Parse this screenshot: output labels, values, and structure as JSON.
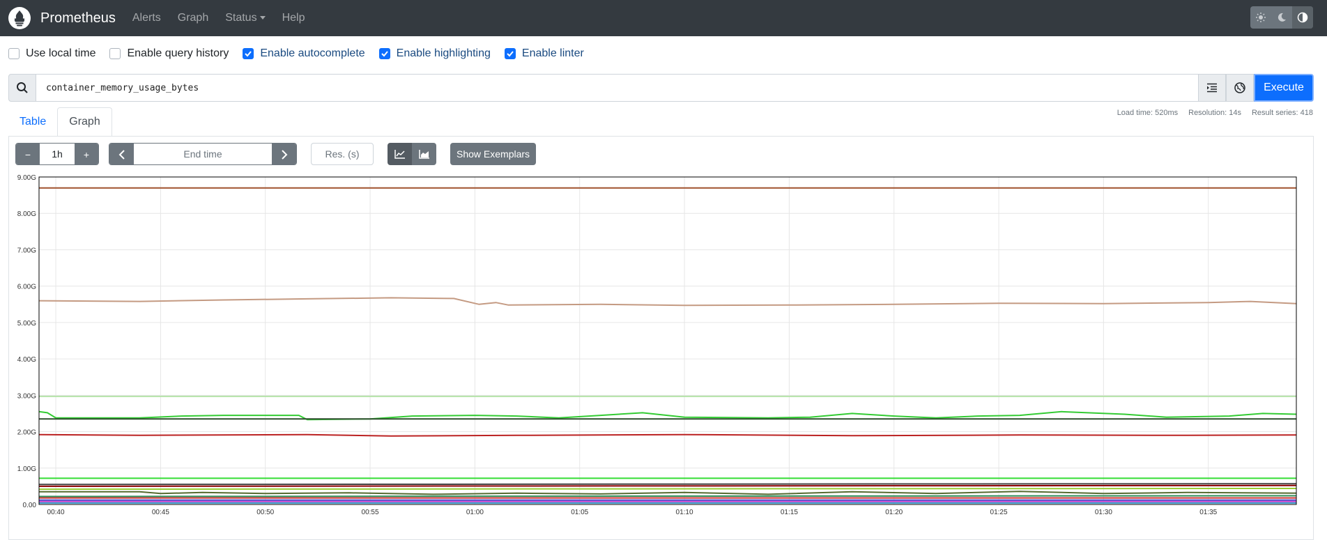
{
  "navbar": {
    "brand": "Prometheus",
    "items": [
      "Alerts",
      "Graph",
      "Status",
      "Help"
    ],
    "theme_icons": [
      "sun-icon",
      "moon-icon",
      "contrast-icon"
    ]
  },
  "options": [
    {
      "label": "Use local time",
      "checked": false
    },
    {
      "label": "Enable query history",
      "checked": false
    },
    {
      "label": "Enable autocomplete",
      "checked": true
    },
    {
      "label": "Enable highlighting",
      "checked": true
    },
    {
      "label": "Enable linter",
      "checked": true
    }
  ],
  "query": {
    "expression": "container_memory_usage_bytes",
    "execute_label": "Execute"
  },
  "tabs": [
    "Table",
    "Graph"
  ],
  "active_tab": "Graph",
  "stats": {
    "load_time": "Load time: 520ms",
    "resolution": "Resolution: 14s",
    "result_series": "Result series: 418"
  },
  "controls": {
    "minus": "−",
    "range": "1h",
    "plus": "+",
    "end_time_placeholder": "End time",
    "res_placeholder": "Res. (s)",
    "show_exemplars": "Show Exemplars"
  },
  "chart_data": {
    "type": "line",
    "ylim": [
      0,
      9
    ],
    "yticks": [
      "0.00",
      "1.00G",
      "2.00G",
      "3.00G",
      "4.00G",
      "5.00G",
      "6.00G",
      "7.00G",
      "8.00G",
      "9.00G"
    ],
    "xticks": [
      "00:40",
      "00:45",
      "00:50",
      "00:55",
      "01:00",
      "01:05",
      "01:10",
      "01:15",
      "01:20",
      "01:25",
      "01:30",
      "01:35"
    ],
    "x_minutes": [
      40,
      45,
      50,
      55,
      60,
      65,
      70,
      75,
      80,
      85,
      90,
      95
    ],
    "xlim": [
      39.2,
      99.2
    ],
    "series": [
      {
        "color": "#a0522d",
        "points": [
          [
            39.2,
            8.7
          ],
          [
            99.2,
            8.7
          ]
        ]
      },
      {
        "color": "#c49a82",
        "points": [
          [
            39.2,
            5.6
          ],
          [
            44,
            5.58
          ],
          [
            48,
            5.62
          ],
          [
            52,
            5.65
          ],
          [
            56,
            5.68
          ],
          [
            59,
            5.66
          ],
          [
            60.2,
            5.5
          ],
          [
            61,
            5.55
          ],
          [
            61.6,
            5.48
          ],
          [
            66,
            5.5
          ],
          [
            70,
            5.47
          ],
          [
            75,
            5.48
          ],
          [
            80,
            5.5
          ],
          [
            85,
            5.53
          ],
          [
            90,
            5.52
          ],
          [
            95,
            5.55
          ],
          [
            97,
            5.58
          ],
          [
            99.2,
            5.52
          ]
        ]
      },
      {
        "color": "#b5e3a8",
        "points": [
          [
            39.2,
            2.97
          ],
          [
            99.2,
            2.97
          ]
        ]
      },
      {
        "color": "#33cc33",
        "points": [
          [
            39.2,
            2.55
          ],
          [
            39.6,
            2.52
          ],
          [
            40,
            2.38
          ],
          [
            44,
            2.38
          ],
          [
            46,
            2.43
          ],
          [
            48,
            2.45
          ],
          [
            50,
            2.45
          ],
          [
            51.6,
            2.45
          ],
          [
            52,
            2.33
          ],
          [
            55,
            2.35
          ],
          [
            57,
            2.43
          ],
          [
            60,
            2.45
          ],
          [
            62,
            2.43
          ],
          [
            64,
            2.38
          ],
          [
            66,
            2.45
          ],
          [
            68,
            2.52
          ],
          [
            70,
            2.4
          ],
          [
            74,
            2.38
          ],
          [
            76,
            2.4
          ],
          [
            78,
            2.5
          ],
          [
            80,
            2.43
          ],
          [
            82,
            2.38
          ],
          [
            84,
            2.43
          ],
          [
            86,
            2.45
          ],
          [
            88,
            2.55
          ],
          [
            91,
            2.48
          ],
          [
            93,
            2.4
          ],
          [
            96,
            2.43
          ],
          [
            97.6,
            2.5
          ],
          [
            99.2,
            2.48
          ]
        ]
      },
      {
        "color": "#2f4f2f",
        "points": [
          [
            39.2,
            2.35
          ],
          [
            99.2,
            2.35
          ]
        ]
      },
      {
        "color": "#bb2222",
        "points": [
          [
            39.2,
            1.92
          ],
          [
            44,
            1.9
          ],
          [
            52,
            1.92
          ],
          [
            56,
            1.88
          ],
          [
            62,
            1.9
          ],
          [
            70,
            1.92
          ],
          [
            78,
            1.89
          ],
          [
            86,
            1.91
          ],
          [
            94,
            1.9
          ],
          [
            99.2,
            1.91
          ]
        ]
      },
      {
        "color": "#33dd33",
        "points": [
          [
            39.2,
            0.72
          ],
          [
            99.2,
            0.72
          ]
        ]
      },
      {
        "color": "#444444",
        "points": [
          [
            39.2,
            0.55
          ],
          [
            99.2,
            0.57
          ]
        ]
      },
      {
        "color": "#8b0000",
        "points": [
          [
            39.2,
            0.5
          ],
          [
            99.2,
            0.52
          ]
        ]
      },
      {
        "color": "#99cc33",
        "points": [
          [
            39.2,
            0.42
          ],
          [
            99.2,
            0.44
          ]
        ]
      },
      {
        "color": "#556b2f",
        "points": [
          [
            39.2,
            0.35
          ],
          [
            44,
            0.35
          ],
          [
            45,
            0.3
          ],
          [
            47,
            0.33
          ],
          [
            50,
            0.3
          ],
          [
            54,
            0.32
          ],
          [
            58,
            0.28
          ],
          [
            62,
            0.31
          ],
          [
            66,
            0.29
          ],
          [
            70,
            0.33
          ],
          [
            74,
            0.28
          ],
          [
            78,
            0.35
          ],
          [
            82,
            0.3
          ],
          [
            86,
            0.36
          ],
          [
            90,
            0.3
          ],
          [
            94,
            0.33
          ],
          [
            99.2,
            0.31
          ]
        ]
      },
      {
        "color": "#2e8b57",
        "points": [
          [
            39.2,
            0.22
          ],
          [
            99.2,
            0.24
          ]
        ]
      },
      {
        "color": "#cc3333",
        "points": [
          [
            39.2,
            0.18
          ],
          [
            99.2,
            0.18
          ]
        ]
      },
      {
        "color": "#4444cc",
        "points": [
          [
            39.2,
            0.12
          ],
          [
            99.2,
            0.12
          ]
        ]
      },
      {
        "color": "#cc44cc",
        "points": [
          [
            39.2,
            0.08
          ],
          [
            99.2,
            0.08
          ]
        ]
      },
      {
        "color": "#3399cc",
        "points": [
          [
            39.2,
            0.04
          ],
          [
            99.2,
            0.04
          ]
        ]
      }
    ]
  }
}
